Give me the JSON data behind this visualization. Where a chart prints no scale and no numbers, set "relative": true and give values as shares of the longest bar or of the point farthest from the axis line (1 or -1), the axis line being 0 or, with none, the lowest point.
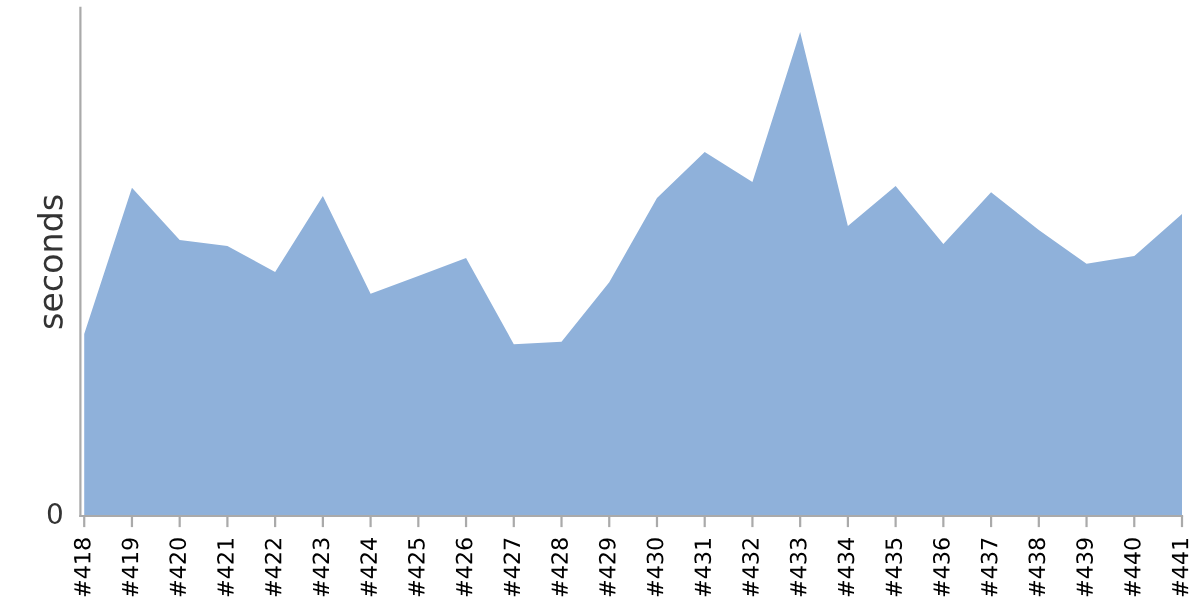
{
  "chart_data": {
    "type": "area",
    "ylabel": "seconds",
    "relative": true,
    "annotations": [
      "0"
    ],
    "categories": [
      "#418",
      "#419",
      "#420",
      "#421",
      "#422",
      "#423",
      "#424",
      "#425",
      "#426",
      "#427",
      "#428",
      "#429",
      "#430",
      "#431",
      "#432",
      "#433",
      "#434",
      "#435",
      "#436",
      "#437",
      "#438",
      "#439",
      "#440",
      "#441"
    ],
    "series": [
      {
        "color": "#8fb1da",
        "values": [
          0.376,
          0.678,
          0.57,
          0.558,
          0.504,
          0.661,
          0.459,
          0.496,
          0.533,
          0.355,
          0.36,
          0.483,
          0.657,
          0.752,
          0.69,
          1,
          0.599,
          0.682,
          0.562,
          0.669,
          0.591,
          0.521,
          0.537,
          0.624
        ]
      }
    ],
    "grid": false,
    "legend": false
  }
}
